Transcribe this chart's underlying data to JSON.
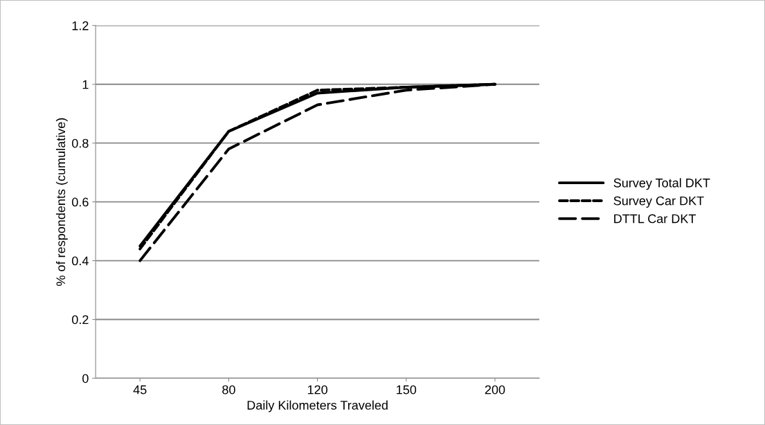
{
  "chart_data": {
    "type": "line",
    "xlabel": "Daily Kilometers Traveled",
    "ylabel": "% of respondents (cumulative)",
    "categories": [
      "45",
      "80",
      "120",
      "150",
      "200"
    ],
    "series": [
      {
        "name": "Survey Total DKT",
        "color": "#000000",
        "line_style": "solid",
        "values": [
          0.45,
          0.84,
          0.97,
          0.99,
          1.0
        ]
      },
      {
        "name": "Survey Car DKT",
        "color": "#000000",
        "line_style": "dashed",
        "values": [
          0.44,
          0.84,
          0.98,
          0.99,
          1.0
        ]
      },
      {
        "name": "DTTL Car DKT",
        "color": "#000000",
        "line_style": "longdash",
        "values": [
          0.4,
          0.78,
          0.93,
          0.98,
          1.0
        ]
      }
    ],
    "ylim": [
      0,
      1.2
    ],
    "yticks": [
      0,
      0.2,
      0.4,
      0.6,
      0.8,
      1,
      1.2
    ],
    "grid": "y",
    "legend": "right",
    "marker": "none"
  }
}
